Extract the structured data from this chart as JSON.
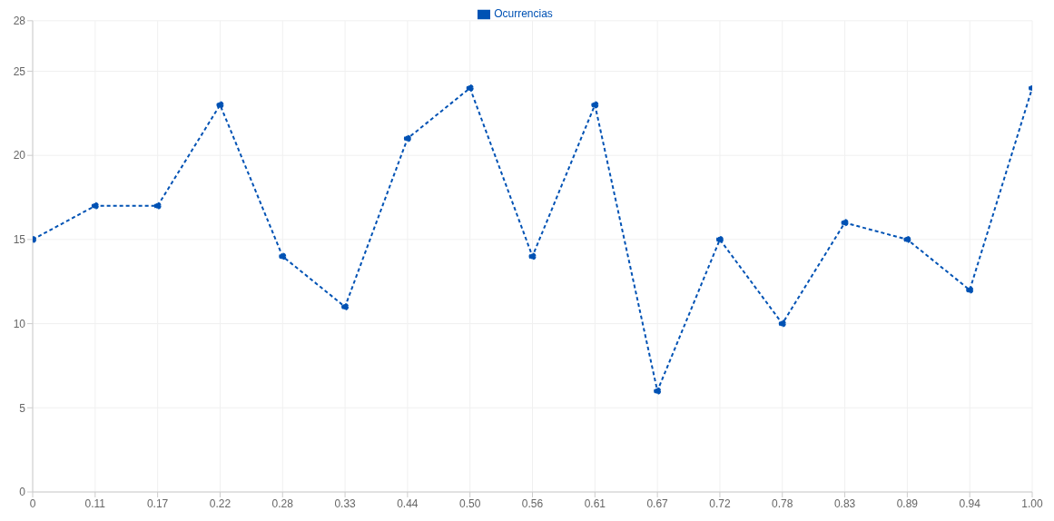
{
  "chart_data": {
    "type": "line",
    "categories": [
      "0",
      "0.11",
      "0.17",
      "0.22",
      "0.28",
      "0.33",
      "0.44",
      "0.50",
      "0.56",
      "0.61",
      "0.67",
      "0.72",
      "0.78",
      "0.83",
      "0.89",
      "0.94",
      "1.00"
    ],
    "series": [
      {
        "name": "Ocurrencias",
        "color": "#0052b4",
        "values": [
          15,
          17,
          17,
          23,
          14,
          11,
          21,
          24,
          14,
          23,
          6,
          15,
          10,
          16,
          15,
          12,
          24
        ]
      }
    ],
    "ylim": [
      0,
      28
    ],
    "yticks": [
      0,
      5,
      10,
      15,
      20,
      25,
      28
    ],
    "grid": true,
    "legend": "top",
    "marker": "circle",
    "line_style": "dashed"
  }
}
